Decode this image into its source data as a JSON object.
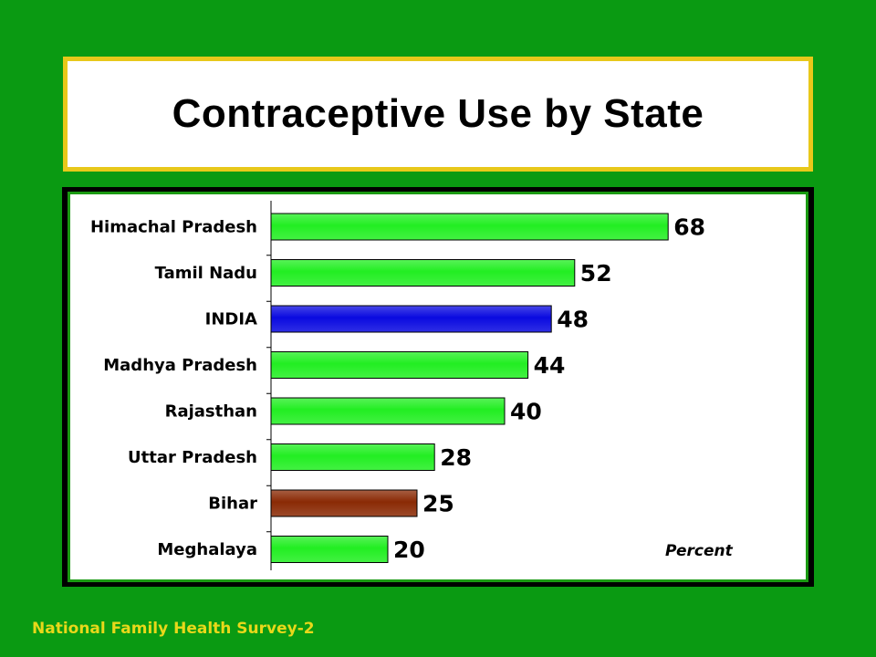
{
  "title": "Contraceptive Use by State",
  "footer": "National Family Health Survey-2",
  "colors": {
    "background": "#0a9a12",
    "title_border": "#e8c81a",
    "bar_default": "#22ee22",
    "bar_india": "#0a0ae0",
    "bar_bihar": "#8a2a05",
    "footer_text": "#e8d81a"
  },
  "chart_data": {
    "type": "bar",
    "orientation": "horizontal",
    "categories": [
      "Himachal Pradesh",
      "Tamil Nadu",
      "INDIA",
      "Madhya Pradesh",
      "Rajasthan",
      "Uttar Pradesh",
      "Bihar",
      "Meghalaya"
    ],
    "values": [
      68,
      52,
      48,
      44,
      40,
      28,
      25,
      20
    ],
    "bar_colors": [
      "#22ee22",
      "#22ee22",
      "#0a0ae0",
      "#22ee22",
      "#22ee22",
      "#22ee22",
      "#8a2a05",
      "#22ee22"
    ],
    "title": "Contraceptive Use by State",
    "xlabel": "Percent",
    "ylabel": "",
    "xlim": [
      0,
      68
    ],
    "grid": false,
    "data_labels": true
  }
}
